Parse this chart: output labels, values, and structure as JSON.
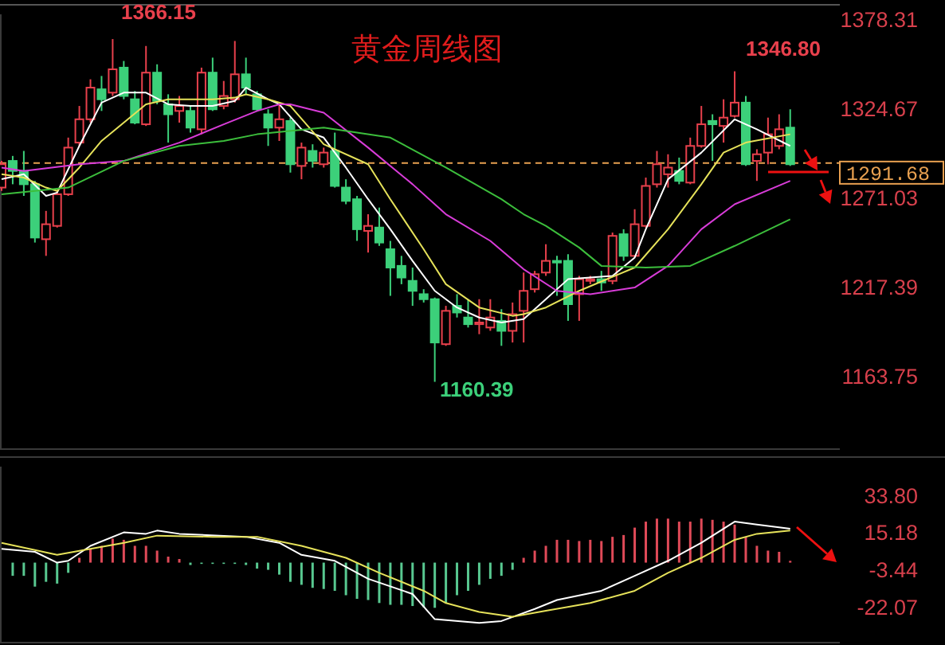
{
  "chart_data": [
    {
      "type": "candlestick",
      "title": "黄金周线图",
      "categories": [
        null,
        null,
        null,
        null,
        null,
        null,
        null,
        null,
        null,
        null,
        null,
        null,
        null,
        null,
        null,
        null,
        null,
        null,
        null,
        null,
        null,
        null,
        null,
        null,
        null,
        null,
        null,
        null,
        null,
        null,
        null,
        null,
        null,
        null,
        null,
        null,
        null,
        null,
        null,
        null,
        null,
        null,
        null,
        null,
        null,
        null,
        null,
        null,
        null,
        null,
        null,
        null,
        null,
        null,
        null,
        null,
        null,
        null,
        null,
        null,
        null,
        null,
        null,
        null,
        null,
        null,
        null,
        null,
        null,
        null,
        null,
        null
      ],
      "ohlc": [
        [
          1277,
          1293,
          1275,
          1291
        ],
        [
          1293,
          1296,
          1279,
          1287
        ],
        [
          1287,
          1299,
          1272,
          1279
        ],
        [
          1279,
          1281,
          1244,
          1247
        ],
        [
          1246,
          1263,
          1236,
          1255
        ],
        [
          1254,
          1275,
          1253,
          1273
        ],
        [
          1273,
          1307,
          1272,
          1301
        ],
        [
          1304,
          1326,
          1302,
          1318
        ],
        [
          1318,
          1342,
          1316,
          1337
        ],
        [
          1336,
          1344,
          1323,
          1330
        ],
        [
          1334,
          1366.15,
          1332,
          1348
        ],
        [
          1349,
          1353,
          1330,
          1332
        ],
        [
          1330,
          1335,
          1315,
          1316
        ],
        [
          1315,
          1362,
          1314,
          1346
        ],
        [
          1346,
          1351,
          1327,
          1329
        ],
        [
          1327,
          1333,
          1304,
          1321
        ],
        [
          1323,
          1332,
          1316,
          1326
        ],
        [
          1323,
          1326,
          1310,
          1313
        ],
        [
          1312,
          1349,
          1309,
          1346
        ],
        [
          1346,
          1355,
          1323,
          1324
        ],
        [
          1326,
          1341,
          1324,
          1332
        ],
        [
          1330,
          1365,
          1328,
          1345
        ],
        [
          1345,
          1355,
          1333,
          1337
        ],
        [
          1333,
          1335,
          1323,
          1324
        ],
        [
          1321,
          1324,
          1302,
          1313
        ],
        [
          1313,
          1327,
          1305,
          1318
        ],
        [
          1317,
          1319,
          1286,
          1291
        ],
        [
          1290,
          1304,
          1282,
          1301
        ],
        [
          1299,
          1303,
          1289,
          1293
        ],
        [
          1291,
          1301,
          1289,
          1298
        ],
        [
          1299,
          1310,
          1277,
          1278
        ],
        [
          1277,
          1282,
          1267,
          1269
        ],
        [
          1270,
          1272,
          1245,
          1252
        ],
        [
          1251,
          1261,
          1238,
          1254
        ],
        [
          1253,
          1265,
          1242,
          1244
        ],
        [
          1240,
          1245,
          1212,
          1229
        ],
        [
          1230,
          1236,
          1219,
          1223
        ],
        [
          1221,
          1229,
          1206,
          1215
        ],
        [
          1213,
          1216,
          1208,
          1210
        ],
        [
          1210,
          1211,
          1160.39,
          1184
        ],
        [
          1183,
          1206,
          1182,
          1203
        ],
        [
          1206,
          1213,
          1199,
          1202
        ],
        [
          1199,
          1210,
          1193,
          1195
        ],
        [
          1195,
          1210,
          1189,
          1196
        ],
        [
          1193,
          1210,
          1191,
          1199
        ],
        [
          1197,
          1204,
          1182,
          1191
        ],
        [
          1191,
          1208,
          1184,
          1201
        ],
        [
          1203,
          1226,
          1184,
          1215
        ],
        [
          1216,
          1227,
          1214,
          1225
        ],
        [
          1226,
          1243,
          1224,
          1233
        ],
        [
          1233,
          1236,
          1212,
          1232
        ],
        [
          1233,
          1237,
          1197,
          1207
        ],
        [
          1213,
          1224,
          1197,
          1222
        ],
        [
          1221,
          1224,
          1219,
          1222
        ],
        [
          1222,
          1227,
          1215,
          1220
        ],
        [
          1221,
          1250,
          1219,
          1248
        ],
        [
          1249,
          1252,
          1233,
          1236
        ],
        [
          1236,
          1264,
          1235,
          1255
        ],
        [
          1254,
          1283,
          1253,
          1278
        ],
        [
          1279,
          1299,
          1277,
          1291
        ],
        [
          1285,
          1297,
          1277,
          1289
        ],
        [
          1287,
          1295,
          1279,
          1281
        ],
        [
          1280,
          1307,
          1279,
          1302
        ],
        [
          1302,
          1326,
          1301,
          1315
        ],
        [
          1317,
          1321,
          1293,
          1315
        ],
        [
          1314,
          1330,
          1304,
          1319
        ],
        [
          1320,
          1346.8,
          1319,
          1328
        ],
        [
          1328,
          1332,
          1290,
          1291
        ],
        [
          1293,
          1300,
          1281,
          1297
        ],
        [
          1298,
          1319,
          1291,
          1309
        ],
        [
          1302,
          1321,
          1300,
          1312
        ],
        [
          1313,
          1324,
          1290,
          1291
        ]
      ],
      "series": [
        {
          "type": "line",
          "color": "#ffffff",
          "values": [
            1282,
            null,
            1285,
            null,
            1272,
            1274,
            null,
            1302,
            null,
            1328,
            null,
            1334,
            null,
            1334,
            null,
            1327,
            null,
            1326,
            null,
            1326,
            null,
            1329,
            1337,
            null,
            1330,
            1327,
            null,
            1312,
            null,
            1307,
            null,
            1289,
            null,
            1270,
            null,
            1252,
            null,
            1233,
            null,
            1215,
            null,
            1205,
            null,
            1199,
            null,
            1196,
            null,
            1198,
            null,
            1210,
            null,
            1222,
            null,
            1223,
            null,
            1224,
            null,
            1235,
            1252,
            null,
            1282,
            null,
            null,
            1298,
            null,
            null,
            1318,
            null,
            1312,
            null,
            null,
            1302
          ]
        },
        {
          "type": "line",
          "color": "#e6e25a",
          "values": [
            1285,
            null,
            1283,
            null,
            1277,
            1275,
            null,
            1289,
            null,
            1305,
            null,
            1316,
            null,
            1327,
            null,
            1330,
            null,
            1330,
            null,
            1330,
            null,
            1331,
            1333,
            null,
            1330,
            null,
            1326,
            null,
            null,
            1303,
            null,
            null,
            null,
            1291,
            null,
            1270,
            null,
            null,
            1240,
            null,
            1219,
            null,
            null,
            1205,
            null,
            null,
            1200,
            1201,
            null,
            1205,
            null,
            null,
            1215,
            null,
            null,
            null,
            null,
            1229,
            null,
            null,
            1252,
            null,
            null,
            1279,
            null,
            1298,
            null,
            1304,
            null,
            null,
            null,
            1309
          ]
        },
        {
          "type": "line",
          "color": "#d83cd8",
          "values": [
            1289,
            null,
            1287,
            null,
            null,
            null,
            null,
            1291,
            null,
            null,
            null,
            1293,
            null,
            null,
            null,
            null,
            1304,
            null,
            null,
            null,
            1315,
            null,
            null,
            1323,
            null,
            1327,
            1327,
            null,
            null,
            1322,
            null,
            null,
            null,
            1301,
            null,
            null,
            null,
            1279,
            null,
            null,
            1261,
            null,
            null,
            null,
            1245,
            null,
            null,
            1228,
            null,
            null,
            1215,
            null,
            null,
            1213,
            null,
            null,
            null,
            1217,
            null,
            null,
            1230,
            null,
            null,
            1252,
            null,
            null,
            1267,
            null,
            null,
            null,
            null,
            1281
          ]
        },
        {
          "type": "line",
          "color": "#3cbe3c",
          "values": [
            1273,
            null,
            null,
            null,
            null,
            null,
            1277,
            null,
            null,
            null,
            null,
            1293,
            null,
            null,
            null,
            null,
            1302,
            null,
            null,
            null,
            1305,
            null,
            null,
            1309,
            null,
            null,
            null,
            null,
            null,
            1313,
            null,
            null,
            null,
            null,
            null,
            1307,
            null,
            null,
            null,
            null,
            1289,
            null,
            null,
            null,
            null,
            1270,
            null,
            1261,
            null,
            1254,
            null,
            null,
            1241,
            null,
            1230,
            null,
            null,
            null,
            1229,
            null,
            null,
            null,
            1230,
            null,
            null,
            null,
            1242,
            null,
            null,
            null,
            null,
            1258
          ]
        }
      ],
      "ylim": [
        1120,
        1381
      ],
      "yticks": [
        1378.31,
        1324.67,
        1271.03,
        1217.39,
        1163.75
      ],
      "tick_labels": "y",
      "ref_lines": [
        {
          "axis": "y",
          "value": 1291.68,
          "label": "1291.68",
          "color": "#e8a050",
          "line_style": "dashed"
        }
      ],
      "annotations": [
        "1366.15",
        "1346.80",
        "1160.39"
      ]
    },
    {
      "type": "bar",
      "categories": [
        null,
        null,
        null,
        null,
        null,
        null,
        null,
        null,
        null,
        null,
        null,
        null,
        null,
        null,
        null,
        null,
        null,
        null,
        null,
        null,
        null,
        null,
        null,
        null,
        null,
        null,
        null,
        null,
        null,
        null,
        null,
        null,
        null,
        null,
        null,
        null,
        null,
        null,
        null,
        null,
        null,
        null,
        null,
        null,
        null,
        null,
        null,
        null,
        null,
        null,
        null,
        null,
        null,
        null,
        null,
        null,
        null,
        null,
        null,
        null,
        null,
        null,
        null,
        null,
        null,
        null,
        null,
        null,
        null,
        null,
        null,
        null
      ],
      "series": [
        {
          "type": "bar",
          "color": "#e04a58",
          "values": [
            null,
            null,
            null,
            null,
            null,
            null,
            null,
            2.4,
            6.9,
            8.4,
            12.0,
            11.4,
            8.4,
            8.4,
            6.0,
            3.0,
            1.8,
            null,
            null,
            null,
            null,
            null,
            null,
            null,
            null,
            null,
            null,
            null,
            null,
            null,
            null,
            null,
            null,
            null,
            null,
            null,
            null,
            null,
            null,
            null,
            null,
            null,
            null,
            null,
            null,
            null,
            null,
            2.4,
            6.0,
            8.4,
            11.4,
            11.4,
            10.8,
            11.4,
            10.8,
            12.9,
            13.8,
            17.5,
            20.5,
            22.0,
            22.0,
            20.5,
            20.5,
            22.0,
            21.4,
            20.5,
            19.0,
            12.9,
            8.4,
            6.0,
            5.4,
            0.9
          ]
        },
        {
          "type": "bar",
          "color": "#58c890",
          "values": [
            null,
            -6.6,
            -6.6,
            -12.0,
            -9.6,
            -10.5,
            -5.1,
            null,
            null,
            null,
            null,
            null,
            null,
            null,
            null,
            null,
            null,
            -1.2,
            -0.6,
            -0.6,
            -0.6,
            -0.6,
            -1.2,
            -3.0,
            -3.6,
            -6.0,
            -9.6,
            -11.1,
            -12.6,
            -13.2,
            -14.1,
            -16.3,
            -18.1,
            -18.7,
            -20.2,
            -21.1,
            -21.1,
            -21.7,
            -22.3,
            -22.6,
            -20.2,
            -16.3,
            -14.1,
            -11.1,
            -8.1,
            -6.6,
            -3.6,
            null,
            null,
            null,
            null,
            null,
            null,
            null,
            null,
            null,
            null,
            null,
            null,
            null,
            null,
            null,
            null,
            null,
            null,
            null,
            null,
            null,
            null,
            null,
            null,
            null
          ]
        },
        {
          "type": "line",
          "color": "#ffffff",
          "values": [
            6.9,
            null,
            null,
            5.4,
            null,
            0,
            0.9,
            null,
            8.4,
            null,
            null,
            15.1,
            null,
            14.4,
            16.0,
            null,
            14.4,
            null,
            null,
            null,
            null,
            null,
            12.9,
            null,
            null,
            9.9,
            null,
            3.9,
            null,
            null,
            0.9,
            null,
            null,
            -8.1,
            null,
            null,
            null,
            -15.7,
            null,
            -28.3,
            null,
            null,
            null,
            -30.1,
            null,
            -29.2,
            null,
            null,
            -23.2,
            null,
            -18.7,
            null,
            null,
            null,
            -14.1,
            null,
            null,
            -6.6,
            null,
            null,
            0.9,
            null,
            null,
            9.9,
            null,
            null,
            20.5,
            null,
            19.0,
            null,
            null,
            16.9
          ]
        },
        {
          "type": "line",
          "color": "#e6e25a",
          "values": [
            9.9,
            null,
            null,
            null,
            null,
            3.9,
            null,
            null,
            6.9,
            null,
            null,
            9.9,
            null,
            null,
            13.5,
            null,
            null,
            null,
            null,
            12.9,
            null,
            null,
            null,
            12.9,
            null,
            null,
            null,
            8.4,
            null,
            null,
            null,
            2.4,
            null,
            null,
            -5.1,
            null,
            null,
            null,
            -14.1,
            null,
            -20.2,
            null,
            null,
            -24.7,
            null,
            null,
            -27.1,
            null,
            null,
            -24.1,
            null,
            null,
            null,
            -20.2,
            null,
            null,
            null,
            -14.1,
            null,
            null,
            -5.1,
            null,
            null,
            2.4,
            null,
            null,
            11.4,
            null,
            14.4,
            null,
            null,
            16.0
          ]
        }
      ],
      "ylim": [
        -40,
        48
      ],
      "yticks": [
        {
          "value": 33.8,
          "label": "33.80"
        },
        15.18,
        -3.44,
        -22.07
      ],
      "tick_labels": "y"
    }
  ]
}
